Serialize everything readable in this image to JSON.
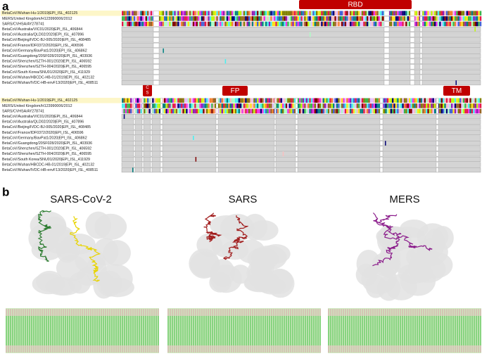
{
  "panel_a": {
    "label": "a",
    "sequences": [
      "BetaCoV/Wuhan-Hu-1/2019|EPI_ISL_402125",
      "MERS/United Kingdom/H123990006/2012",
      "SARS/CVHSA/AY278741",
      "BetaCoV/Australia/VIC01/2020|EPI_ISL_406844",
      "BetaCoV/Australia/QLD02/2020|EPI_ISL_407896",
      "BetaCoV/Beijing/IVDC-BJ-005/2020|EPI_ISL_408485",
      "BetaCoV/France/IDF0372/2020|EPI_ISL_406596",
      "BetaCoV/Germany/BavPat1/2020|EPI_ISL_406862",
      "BetaCoV/Guangdong/20SF028/2020|EPI_ISL_403936",
      "BetaCoV/Shenzhen/SZTH-001/2020|EPI_ISL_406592",
      "BetaCoV/Shenzhen/SZTH-004/2020|EPI_ISL_406595",
      "BetaCoV/South Korea/SNU01/2020|EPI_ISL_411929",
      "BetaCoV/Wuhan/HBCDC-HB-01/2019|EPI_ISL_402132",
      "BetaCoV/Wuhan/IVDC-HB-envF13/2020|EPI_ISL_408511"
    ],
    "domains_top": [
      "RBD"
    ],
    "domains_bottom": {
      "cs_top": "C",
      "cs_bottom": "S",
      "fp": "FP",
      "tm": "TM"
    }
  },
  "panel_b": {
    "label": "b",
    "structures": [
      "SARS-CoV-2",
      "SARS",
      "MERS"
    ]
  }
}
